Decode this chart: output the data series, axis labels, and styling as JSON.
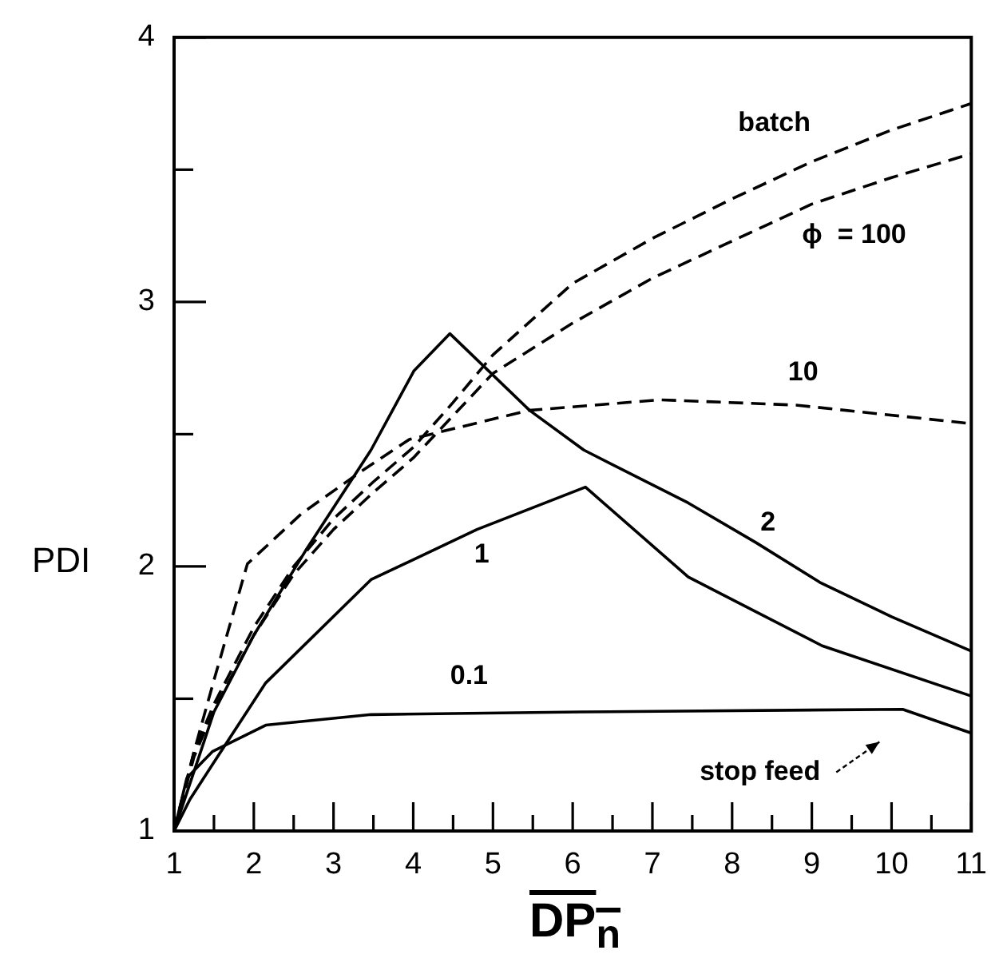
{
  "chart_data": {
    "type": "line",
    "xlabel": "DP$_{n}$",
    "ylabel": "PDI",
    "xlim": [
      1,
      11
    ],
    "ylim": [
      1,
      4
    ],
    "xticks": [
      1,
      {
        "value": 1.5,
        "label": null
      },
      2,
      {
        "value": 2.5,
        "label": null
      },
      3,
      {
        "value": 3.5,
        "label": null
      },
      4,
      {
        "value": 4.5,
        "label": null
      },
      5,
      {
        "value": 5.5,
        "label": null
      },
      6,
      {
        "value": 6.5,
        "label": null
      },
      7,
      {
        "value": 7.5,
        "label": null
      },
      8,
      {
        "value": 8.5,
        "label": null
      },
      9,
      {
        "value": 9.5,
        "label": null
      },
      10,
      {
        "value": 10.5,
        "label": null
      },
      11
    ],
    "yticks": [
      1,
      {
        "value": 1.5,
        "label": null
      },
      2,
      {
        "value": 2.5,
        "label": null
      },
      3,
      {
        "value": 3.5,
        "label": null
      },
      4
    ],
    "grid": false,
    "legend": false,
    "marker": "none",
    "series": [
      {
        "name": "batch",
        "color": "#000000",
        "line_style": "dashed",
        "x": [
          1,
          1.25,
          1.5,
          2,
          2.5,
          3,
          3.5,
          4,
          4.5,
          5,
          6,
          7,
          8,
          9,
          10,
          11
        ],
        "values": [
          1,
          1.3,
          1.48,
          1.77,
          2.0,
          2.18,
          2.32,
          2.45,
          2.62,
          2.8,
          3.07,
          3.24,
          3.39,
          3.53,
          3.65,
          3.75
        ]
      },
      {
        "name": "ϕ  = 100",
        "color": "#000000",
        "line_style": "dashed",
        "x": [
          1,
          1.25,
          1.5,
          2,
          2.5,
          3,
          3.5,
          4,
          4.5,
          5,
          6,
          7,
          8,
          9,
          10,
          11
        ],
        "values": [
          1,
          1.28,
          1.46,
          1.74,
          1.97,
          2.14,
          2.28,
          2.41,
          2.57,
          2.73,
          2.92,
          3.09,
          3.23,
          3.37,
          3.47,
          3.56
        ]
      },
      {
        "name": "10",
        "color": "#000000",
        "line_style": "dashed",
        "x": [
          1,
          1.25,
          1.5,
          1.92,
          2.6,
          3.35,
          3.95,
          5.45,
          7.1,
          8.8,
          11
        ],
        "values": [
          1,
          1.3,
          1.57,
          2.01,
          2.2,
          2.36,
          2.48,
          2.59,
          2.63,
          2.61,
          2.54
        ]
      },
      {
        "name": "2",
        "color": "#000000",
        "line_style": "solid",
        "x": [
          1,
          1.5,
          2,
          2.65,
          3.47,
          4.01,
          4.46,
          5.46,
          6.14,
          7.45,
          8.3,
          9.1,
          10,
          11
        ],
        "values": [
          1,
          1.45,
          1.74,
          2.06,
          2.44,
          2.74,
          2.88,
          2.59,
          2.44,
          2.24,
          2.09,
          1.94,
          1.81,
          1.68
        ]
      },
      {
        "name": "1",
        "color": "#000000",
        "line_style": "solid",
        "x": [
          1,
          1.2,
          1.5,
          2.15,
          3.47,
          4.8,
          6.16,
          7.45,
          9.13,
          11
        ],
        "values": [
          1,
          1.12,
          1.26,
          1.56,
          1.95,
          2.14,
          2.3,
          1.96,
          1.7,
          1.51
        ]
      },
      {
        "name": "0.1",
        "color": "#000000",
        "line_style": "solid",
        "x": [
          1,
          1.16,
          1.48,
          2.15,
          3.47,
          6.1,
          10.14,
          11
        ],
        "values": [
          1,
          1.2,
          1.3,
          1.4,
          1.44,
          1.45,
          1.46,
          1.37
        ]
      }
    ],
    "annotations": [
      "stop feed"
    ]
  }
}
